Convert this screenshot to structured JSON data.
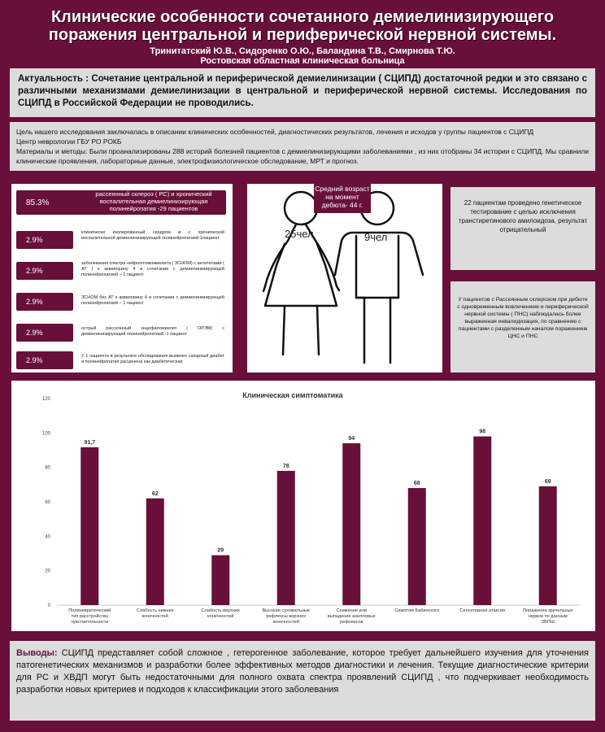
{
  "header": {
    "title_line1": "Клинические  особенности  сочетанного демиелинизирующего",
    "title_line2": "поражения центральной  и  периферической    нервной системы.",
    "authors": "Тринитатский Ю.В., Сидоренко О.Ю., Баландина Т.В., Смирнова Т.Ю.",
    "institution": "Ростовская областная клиническая больница"
  },
  "relevance": {
    "label": "Актуальность :",
    "text": " Сочетание    центральной   и периферической  демиелинизации  (  СЦИПД)  достаточной редки и это связано   с  различными   механизмами  демиелинизации  в  центральной  и  периферической    нервной   системы.  Исследования   по   СЦИПД  в Российской Федерации  не проводились."
  },
  "goal": {
    "line1": "Цель нашего исследования заключалась в описании клинических особенностей, диагностических результатов, лечения и исходов у группы пациентов с СЦИПД",
    "line2": "Центр  неврологии  ГБУ РО РОКБ",
    "line3": "Материалы и методы: Были проанализированы   288    историй  болезней  пациентов с  демиелинизирующими заболеваниями   , из них отобраны 34 истории с СЦИПД. Мы   сравнили клинические проявления, лабораторные данные, электрофизиологическое обследование, МРТ и прогноз."
  },
  "stats": [
    {
      "pct": "85.3%",
      "text": "рассеянный склероз ( РС)  и   хронический воспалительная  демиелинизирующая полинейропатия -29 пациентов"
    },
    {
      "pct": "2.9%",
      "text": "клинически изолированный синдром  в с хронической воспалительной демиелинизирующей полинейропатией-1пациент"
    },
    {
      "pct": "2.9%",
      "text": "заболевания спектра нейрооптикомиелита ( ЗСНОМ) с антителами ( АТ ) к аквапорину 4 в сочетании с демиелинизирующей полинейропатией – 1 пациент"
    },
    {
      "pct": "2.9%",
      "text": "ЗСНОМ без АТ к аквапорину 4 в сочетании с демиелинизирующей полинейропатией – 1 пациент"
    },
    {
      "pct": "2.9%",
      "text": "острый рассеянный энцефаломиелит ( ОРЭМ) с демиелинизирующей полинейропатией -1 пациент"
    },
    {
      "pct": "2.9%",
      "text": "У 1 пациента в результате обследования выявлен сахарный диабет и полинейропатия расценена как диабетическая"
    }
  ],
  "figures": {
    "age_label": "Средний возраст на момент дебюта- 44 г.",
    "female": "25чел",
    "male": "9чел"
  },
  "genetic": "22  пациентам  проведено генетическое тестирование с  целью исключения транстиретинового  амилоидоза, результат  отрицательный",
  "insight": "У пациентов с  Рассеянным склерозом    при дебюте с одновременным вовлечением и периферической нервной системы ( ПНС) наблюдалась более выраженная инвалидизация, по сравнению с пациентами с разделенным началом поражением  ЦНС и ПНС",
  "chart_data": {
    "type": "bar",
    "title": "Клиническая симптоматика",
    "categories": [
      "Полиневритический тип расстройства чувствительности",
      "Слабость нижних конечностей",
      "Слабость верхних конечностей",
      "Высокие сухожильные рефлексы верхних конечностей",
      "Снижение или выпадение ахилловых рефлексов",
      "Симптом Бабинского",
      "Сенсетивная атаксия",
      "Поражения зрительных нервов по данным ЗВПШ"
    ],
    "values": [
      91.7,
      62,
      29,
      78,
      94,
      68,
      98,
      69
    ],
    "data_labels": [
      "91,7",
      "62",
      "29",
      "78",
      "94",
      "68",
      "98",
      "69"
    ],
    "ylim": [
      0,
      120
    ],
    "yticks": [
      "0",
      "20",
      "40",
      "60",
      "80",
      "100",
      "120"
    ],
    "bar_color": "#680f3a",
    "grid": false
  },
  "conclusion": {
    "label": "Выводы:",
    "text": " СЦИПД представляет собой сложное ,  гетерогенное заболевание, которое требует дальнейшего изучения для уточнения патогенетических механизмов и разработки более эффективных методов диагностики и лечения. Текущие диагностические критерии для РС и ХВДП могут быть недостаточными для полного охвата спектра проявлений СЦИПД , что подчеркивает необходимость разработки новых критериев и подходов к классификации этого заболевания"
  },
  "colors": {
    "background": "#680f3a",
    "panel": "#dcdcdc",
    "accent": "#680f3a"
  }
}
